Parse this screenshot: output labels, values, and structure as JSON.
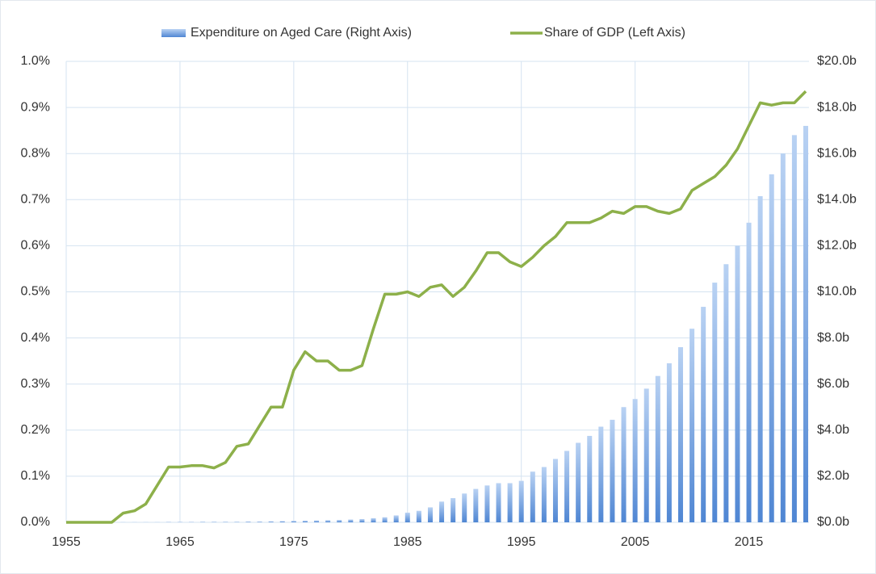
{
  "chart_data": {
    "type": "bar-line",
    "x": [
      1955,
      1956,
      1957,
      1958,
      1959,
      1960,
      1961,
      1962,
      1963,
      1964,
      1965,
      1966,
      1967,
      1968,
      1969,
      1970,
      1971,
      1972,
      1973,
      1974,
      1975,
      1976,
      1977,
      1978,
      1979,
      1980,
      1981,
      1982,
      1983,
      1984,
      1985,
      1986,
      1987,
      1988,
      1989,
      1990,
      1991,
      1992,
      1993,
      1994,
      1995,
      1996,
      1997,
      1998,
      1999,
      2000,
      2001,
      2002,
      2003,
      2004,
      2005,
      2006,
      2007,
      2008,
      2009,
      2010,
      2011,
      2012,
      2013,
      2014,
      2015,
      2016,
      2017,
      2018,
      2019,
      2020
    ],
    "series": [
      {
        "name": "Expenditure on Aged Care (Right Axis)",
        "type": "bar",
        "axis": "y2",
        "color": "#4f86d3",
        "values": [
          0,
          0,
          0,
          0,
          0,
          0.01,
          0.01,
          0.01,
          0.01,
          0.015,
          0.015,
          0.015,
          0.02,
          0.02,
          0.02,
          0.02,
          0.03,
          0.03,
          0.04,
          0.05,
          0.06,
          0.07,
          0.08,
          0.09,
          0.1,
          0.12,
          0.14,
          0.18,
          0.22,
          0.3,
          0.42,
          0.5,
          0.65,
          0.9,
          1.05,
          1.25,
          1.45,
          1.6,
          1.7,
          1.7,
          1.8,
          2.2,
          2.4,
          2.75,
          3.1,
          3.45,
          3.75,
          4.15,
          4.45,
          5.0,
          5.35,
          5.8,
          6.35,
          6.9,
          7.6,
          8.4,
          9.35,
          10.4,
          11.2,
          12.0,
          13.0,
          14.15,
          15.1,
          16.0,
          16.8,
          17.2
        ]
      },
      {
        "name": "Share of GDP (Left Axis)",
        "type": "line",
        "color": "#8db04a",
        "values": [
          0,
          0,
          0,
          0,
          0,
          0.02,
          0.025,
          0.04,
          0.08,
          0.12,
          0.12,
          0.123,
          0.123,
          0.118,
          0.13,
          0.165,
          0.17,
          0.21,
          0.25,
          0.25,
          0.33,
          0.37,
          0.35,
          0.35,
          0.33,
          0.33,
          0.34,
          0.42,
          0.495,
          0.495,
          0.5,
          0.49,
          0.51,
          0.515,
          0.49,
          0.51,
          0.545,
          0.585,
          0.585,
          0.565,
          0.555,
          0.575,
          0.6,
          0.62,
          0.65,
          0.65,
          0.65,
          0.66,
          0.675,
          0.67,
          0.685,
          0.685,
          0.675,
          0.67,
          0.68,
          0.72,
          0.735,
          0.75,
          0.775,
          0.81,
          0.86,
          0.91,
          0.905,
          0.91,
          0.91,
          0.935
        ]
      }
    ],
    "xlim": [
      1955,
      2020
    ],
    "xticks": [
      1955,
      1965,
      1975,
      1985,
      1995,
      2005,
      2015
    ],
    "ylim": [
      0,
      1.0
    ],
    "yticks": [
      {
        "value": 0,
        "label": "0.0%"
      },
      {
        "value": 0.1,
        "label": "0.1%"
      },
      {
        "value": 0.2,
        "label": "0.2%"
      },
      {
        "value": 0.3,
        "label": "0.3%"
      },
      {
        "value": 0.4,
        "label": "0.4%"
      },
      {
        "value": 0.5,
        "label": "0.5%"
      },
      {
        "value": 0.6,
        "label": "0.6%"
      },
      {
        "value": 0.7,
        "label": "0.7%"
      },
      {
        "value": 0.8,
        "label": "0.8%"
      },
      {
        "value": 0.9,
        "label": "0.9%"
      },
      {
        "value": 1.0,
        "label": "1.0%"
      }
    ],
    "y2lim": [
      0,
      20
    ],
    "y2ticks": [
      {
        "value": 0,
        "label": "$0.0b"
      },
      {
        "value": 2,
        "label": "$2.0b"
      },
      {
        "value": 4,
        "label": "$4.0b"
      },
      {
        "value": 6,
        "label": "$6.0b"
      },
      {
        "value": 8,
        "label": "$8.0b"
      },
      {
        "value": 10,
        "label": "$10.0b"
      },
      {
        "value": 12,
        "label": "$12.0b"
      },
      {
        "value": 14,
        "label": "$14.0b"
      },
      {
        "value": 16,
        "label": "$16.0b"
      },
      {
        "value": 18,
        "label": "$18.0b"
      },
      {
        "value": 20,
        "label": "$20.0b"
      }
    ],
    "grid": true,
    "legend": "top"
  }
}
